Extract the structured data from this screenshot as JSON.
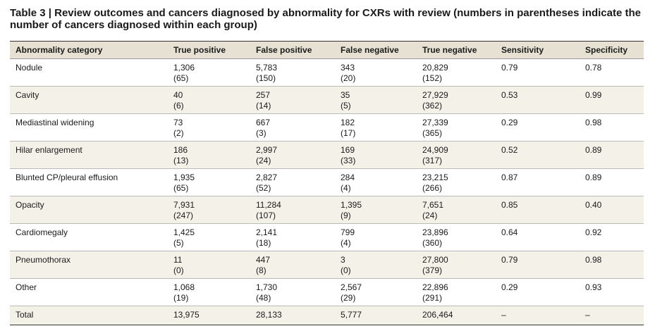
{
  "title": "Table 3 | Review outcomes and cancers diagnosed by abnormality for CXRs with review (numbers in parentheses indicate the number of cancers diagnosed within each group)",
  "table": {
    "header": [
      "Abnormality category",
      "True positive",
      "False positive",
      "False negative",
      "True negative",
      "Sensitivity",
      "Specificity"
    ],
    "rows": [
      {
        "label": "Nodule",
        "cells": [
          [
            "1,306",
            "(65)"
          ],
          [
            "5,783",
            "(150)"
          ],
          [
            "343",
            "(20)"
          ],
          [
            "20,829",
            "(152)"
          ],
          [
            "0.79"
          ],
          [
            "0.78"
          ]
        ]
      },
      {
        "label": "Cavity",
        "cells": [
          [
            "40",
            "(6)"
          ],
          [
            "257",
            "(14)"
          ],
          [
            "35",
            "(5)"
          ],
          [
            "27,929",
            "(362)"
          ],
          [
            "0.53"
          ],
          [
            "0.99"
          ]
        ]
      },
      {
        "label": "Mediastinal widening",
        "cells": [
          [
            "73",
            "(2)"
          ],
          [
            "667",
            "(3)"
          ],
          [
            "182",
            "(17)"
          ],
          [
            "27,339",
            "(365)"
          ],
          [
            "0.29"
          ],
          [
            "0.98"
          ]
        ]
      },
      {
        "label": "Hilar enlargement",
        "cells": [
          [
            "186",
            "(13)"
          ],
          [
            "2,997",
            "(24)"
          ],
          [
            "169",
            "(33)"
          ],
          [
            "24,909",
            "(317)"
          ],
          [
            "0.52"
          ],
          [
            "0.89"
          ]
        ]
      },
      {
        "label": "Blunted CP/pleural effusion",
        "cells": [
          [
            "1,935",
            "(65)"
          ],
          [
            "2,827",
            "(52)"
          ],
          [
            "284",
            "(4)"
          ],
          [
            "23,215",
            "(266)"
          ],
          [
            "0.87"
          ],
          [
            "0.89"
          ]
        ]
      },
      {
        "label": "Opacity",
        "cells": [
          [
            "7,931",
            "(247)"
          ],
          [
            "11,284",
            "(107)"
          ],
          [
            "1,395",
            "(9)"
          ],
          [
            "7,651",
            "(24)"
          ],
          [
            "0.85"
          ],
          [
            "0.40"
          ]
        ]
      },
      {
        "label": "Cardiomegaly",
        "cells": [
          [
            "1,425",
            "(5)"
          ],
          [
            "2,141",
            "(18)"
          ],
          [
            "799",
            "(4)"
          ],
          [
            "23,896",
            "(360)"
          ],
          [
            "0.64"
          ],
          [
            "0.92"
          ]
        ]
      },
      {
        "label": "Pneumothorax",
        "cells": [
          [
            "11",
            "(0)"
          ],
          [
            "447",
            "(8)"
          ],
          [
            "3",
            "(0)"
          ],
          [
            "27,800",
            "(379)"
          ],
          [
            "0.79"
          ],
          [
            "0.98"
          ]
        ]
      },
      {
        "label": "Other",
        "cells": [
          [
            "1,068",
            "(19)"
          ],
          [
            "1,730",
            "(48)"
          ],
          [
            "2,567",
            "(29)"
          ],
          [
            "22,896",
            "(291)"
          ],
          [
            "0.29"
          ],
          [
            "0.93"
          ]
        ]
      },
      {
        "label": "Total",
        "cells": [
          [
            "13,975"
          ],
          [
            "28,133"
          ],
          [
            "5,777"
          ],
          [
            "206,464"
          ],
          [
            "–"
          ],
          [
            "–"
          ]
        ]
      }
    ]
  }
}
